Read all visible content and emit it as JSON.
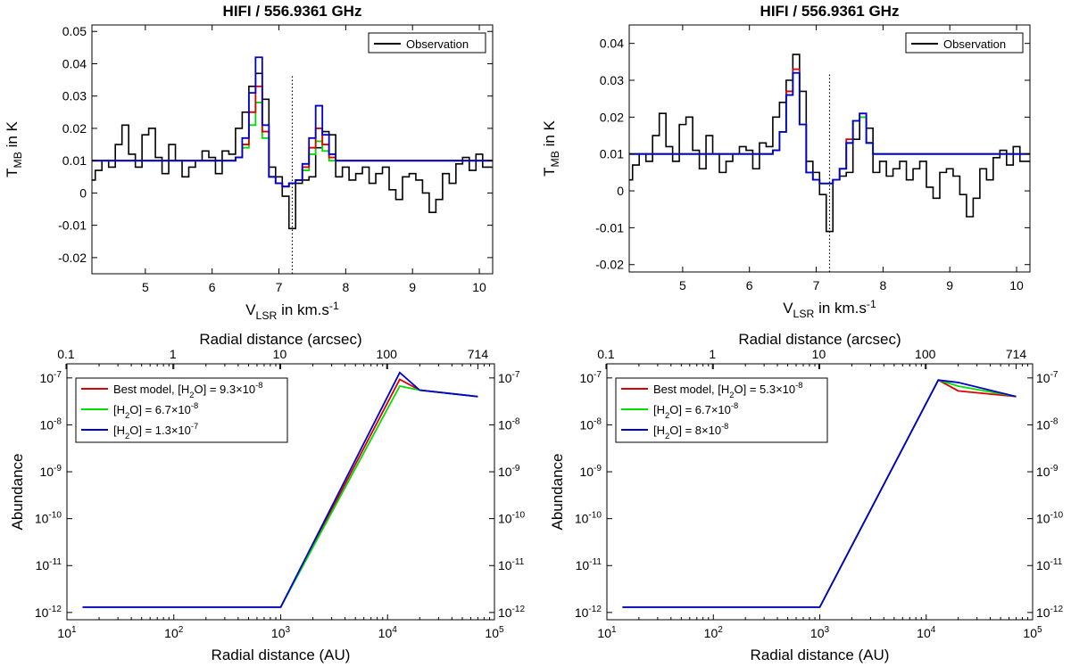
{
  "chart_data": [
    {
      "type": "line",
      "title": "HIFI / 556.9361 GHz",
      "xlabel": "V_LSR in km.s^-1",
      "ylabel": "T_MB in K",
      "xlim": [
        4.2,
        10.2
      ],
      "ylim": [
        -0.025,
        0.052
      ],
      "xticks": [
        "5",
        "6",
        "7",
        "8",
        "9",
        "10"
      ],
      "yticks": [
        "-0.02",
        "-0.01",
        "0",
        "0.01",
        "0.02",
        "0.03",
        "0.04",
        "0.05"
      ],
      "grid": false,
      "legend_position": "top-right",
      "vline_x": 7.2,
      "series": [
        {
          "name": "Observation",
          "color": "#000000",
          "step": true,
          "x": [
            4.2,
            4.3,
            4.4,
            4.5,
            4.6,
            4.7,
            4.8,
            4.9,
            5.0,
            5.1,
            5.2,
            5.3,
            5.4,
            5.5,
            5.6,
            5.7,
            5.8,
            5.9,
            6.0,
            6.1,
            6.2,
            6.3,
            6.4,
            6.5,
            6.6,
            6.7,
            6.8,
            6.9,
            7.0,
            7.1,
            7.2,
            7.3,
            7.4,
            7.5,
            7.6,
            7.7,
            7.8,
            7.9,
            8.0,
            8.1,
            8.2,
            8.3,
            8.4,
            8.5,
            8.6,
            8.7,
            8.8,
            8.9,
            9.0,
            9.1,
            9.2,
            9.3,
            9.4,
            9.5,
            9.6,
            9.7,
            9.8,
            9.9,
            10.0,
            10.1
          ],
          "y": [
            0.004,
            0.007,
            0.01,
            0.008,
            0.015,
            0.021,
            0.012,
            0.008,
            0.018,
            0.02,
            0.011,
            0.006,
            0.015,
            0.01,
            0.005,
            0.008,
            0.01,
            0.013,
            0.011,
            0.006,
            0.013,
            0.012,
            0.02,
            0.025,
            0.033,
            0.037,
            0.029,
            0.008,
            0.005,
            -0.001,
            -0.011,
            0.003,
            0.004,
            0.005,
            0.014,
            0.019,
            0.018,
            0.005,
            0.008,
            0.004,
            0.006,
            0.008,
            0.003,
            0.006,
            0.008,
            0.001,
            -0.002,
            0.005,
            0.006,
            0.004,
            0.0,
            -0.006,
            -0.002,
            0.006,
            0.003,
            0.009,
            0.011,
            0.007,
            0.012,
            0.008
          ]
        },
        {
          "name": "",
          "color": "#00dd00",
          "step": true,
          "x": [
            4.2,
            6.2,
            6.3,
            6.4,
            6.5,
            6.6,
            6.7,
            6.8,
            6.9,
            7.0,
            7.1,
            7.2,
            7.3,
            7.4,
            7.5,
            7.6,
            7.7,
            7.8,
            7.9,
            8.0,
            10.2
          ],
          "y": [
            0.01,
            0.01,
            0.01,
            0.011,
            0.014,
            0.021,
            0.028,
            0.017,
            0.005,
            0.003,
            0.002,
            0.003,
            0.004,
            0.007,
            0.012,
            0.016,
            0.013,
            0.01,
            0.01,
            0.01,
            0.01
          ]
        },
        {
          "name": "",
          "color": "#dd0000",
          "step": true,
          "x": [
            4.2,
            6.2,
            6.3,
            6.4,
            6.5,
            6.6,
            6.7,
            6.8,
            6.9,
            7.0,
            7.1,
            7.2,
            7.3,
            7.4,
            7.5,
            7.6,
            7.7,
            7.8,
            7.9,
            8.0,
            10.2
          ],
          "y": [
            0.01,
            0.01,
            0.01,
            0.011,
            0.015,
            0.025,
            0.033,
            0.019,
            0.005,
            0.003,
            0.002,
            0.003,
            0.004,
            0.008,
            0.014,
            0.02,
            0.015,
            0.011,
            0.01,
            0.01,
            0.01
          ]
        },
        {
          "name": "",
          "color": "#0000cc",
          "step": true,
          "x": [
            4.2,
            6.2,
            6.3,
            6.4,
            6.5,
            6.6,
            6.7,
            6.8,
            6.9,
            7.0,
            7.1,
            7.2,
            7.3,
            7.4,
            7.5,
            7.6,
            7.7,
            7.8,
            7.9,
            8.0,
            10.2
          ],
          "y": [
            0.01,
            0.01,
            0.01,
            0.011,
            0.017,
            0.031,
            0.042,
            0.021,
            0.005,
            0.003,
            0.002,
            0.003,
            0.004,
            0.009,
            0.017,
            0.027,
            0.018,
            0.012,
            0.01,
            0.01,
            0.01
          ]
        }
      ]
    },
    {
      "type": "line",
      "title": "HIFI / 556.9361 GHz",
      "xlabel": "V_LSR in km.s^-1",
      "ylabel": "T_MB in K",
      "xlim": [
        4.2,
        10.2
      ],
      "ylim": [
        -0.022,
        0.045
      ],
      "xticks": [
        "5",
        "6",
        "7",
        "8",
        "9",
        "10"
      ],
      "yticks": [
        "-0.02",
        "-0.01",
        "0",
        "0.01",
        "0.02",
        "0.03",
        "0.04"
      ],
      "grid": false,
      "legend_position": "top-right",
      "vline_x": 7.2,
      "series": [
        {
          "name": "Observation",
          "color": "#000000",
          "step": true,
          "x": [
            4.2,
            4.3,
            4.4,
            4.5,
            4.6,
            4.7,
            4.8,
            4.9,
            5.0,
            5.1,
            5.2,
            5.3,
            5.4,
            5.5,
            5.6,
            5.7,
            5.8,
            5.9,
            6.0,
            6.1,
            6.2,
            6.3,
            6.4,
            6.5,
            6.6,
            6.7,
            6.8,
            6.9,
            7.0,
            7.1,
            7.2,
            7.3,
            7.4,
            7.5,
            7.6,
            7.7,
            7.8,
            7.9,
            8.0,
            8.1,
            8.2,
            8.3,
            8.4,
            8.5,
            8.6,
            8.7,
            8.8,
            8.9,
            9.0,
            9.1,
            9.2,
            9.3,
            9.4,
            9.5,
            9.6,
            9.7,
            9.8,
            9.9,
            10.0,
            10.1
          ],
          "y": [
            0.003,
            0.007,
            0.01,
            0.008,
            0.015,
            0.021,
            0.012,
            0.008,
            0.018,
            0.02,
            0.011,
            0.006,
            0.015,
            0.01,
            0.005,
            0.008,
            0.01,
            0.012,
            0.011,
            0.006,
            0.013,
            0.012,
            0.02,
            0.024,
            0.03,
            0.037,
            0.027,
            0.008,
            0.005,
            -0.001,
            -0.011,
            0.003,
            0.004,
            0.005,
            0.014,
            0.02,
            0.017,
            0.005,
            0.008,
            0.004,
            0.006,
            0.008,
            0.003,
            0.006,
            0.008,
            0.001,
            -0.002,
            0.005,
            0.006,
            0.004,
            -0.001,
            -0.007,
            -0.002,
            0.006,
            0.003,
            0.009,
            0.011,
            0.007,
            0.012,
            0.008
          ]
        },
        {
          "name": "",
          "color": "#dd0000",
          "step": true,
          "x": [
            4.2,
            6.2,
            6.3,
            6.4,
            6.5,
            6.6,
            6.7,
            6.8,
            6.9,
            7.0,
            7.1,
            7.2,
            7.3,
            7.4,
            7.5,
            7.6,
            7.7,
            7.8,
            7.9,
            8.0,
            10.2
          ],
          "y": [
            0.01,
            0.01,
            0.01,
            0.011,
            0.016,
            0.027,
            0.033,
            0.018,
            0.005,
            0.003,
            0.002,
            0.002,
            0.003,
            0.006,
            0.014,
            0.019,
            0.021,
            0.013,
            0.01,
            0.01,
            0.01
          ]
        },
        {
          "name": "",
          "color": "#00dd00",
          "step": true,
          "x": [
            4.2,
            6.2,
            6.3,
            6.4,
            6.5,
            6.6,
            6.7,
            6.8,
            6.9,
            7.0,
            7.1,
            7.2,
            7.3,
            7.4,
            7.5,
            7.6,
            7.7,
            7.8,
            7.9,
            8.0,
            10.2
          ],
          "y": [
            0.01,
            0.01,
            0.01,
            0.011,
            0.016,
            0.026,
            0.032,
            0.018,
            0.005,
            0.003,
            0.002,
            0.002,
            0.003,
            0.006,
            0.013,
            0.019,
            0.02,
            0.013,
            0.01,
            0.01,
            0.01
          ]
        },
        {
          "name": "",
          "color": "#0000cc",
          "step": true,
          "x": [
            4.2,
            6.2,
            6.3,
            6.4,
            6.5,
            6.6,
            6.7,
            6.8,
            6.9,
            7.0,
            7.1,
            7.2,
            7.3,
            7.4,
            7.5,
            7.6,
            7.7,
            7.8,
            7.9,
            8.0,
            10.2
          ],
          "y": [
            0.01,
            0.01,
            0.01,
            0.011,
            0.016,
            0.026,
            0.032,
            0.018,
            0.005,
            0.003,
            0.002,
            0.002,
            0.003,
            0.006,
            0.013,
            0.019,
            0.021,
            0.013,
            0.01,
            0.01,
            0.01
          ]
        }
      ]
    },
    {
      "type": "line",
      "title": "",
      "xlabel": "Radial distance (AU)",
      "ylabel": "Abundance",
      "top_xlabel": "Radial distance (arcsec)",
      "xscale": "log",
      "yscale": "log",
      "xlim": [
        10,
        100000
      ],
      "ylim": [
        7e-13,
        2e-07
      ],
      "xticks": [
        "10^1",
        "10^2",
        "10^3",
        "10^4",
        "10^5"
      ],
      "yticks": [
        "10^-12",
        "10^-11",
        "10^-10",
        "10^-9",
        "10^-8",
        "10^-7"
      ],
      "top_xticks": [
        "0.1",
        "1",
        "10",
        "100",
        "714"
      ],
      "grid": false,
      "legend_position": "top-left",
      "series": [
        {
          "name": "Best model, [H2O] = 9.3×10^-8",
          "color": "#dd0000",
          "x": [
            14,
            1000,
            13000,
            20000,
            70000
          ],
          "y": [
            1.3e-12,
            1.3e-12,
            9.3e-08,
            5.5e-08,
            4e-08
          ]
        },
        {
          "name": "[H2O] = 6.7×10^-8",
          "color": "#00dd00",
          "x": [
            14,
            1000,
            13000,
            20000,
            70000
          ],
          "y": [
            1.3e-12,
            1.3e-12,
            6.7e-08,
            5.5e-08,
            4e-08
          ]
        },
        {
          "name": "[H2O] = 1.3×10^-7",
          "color": "#0000cc",
          "x": [
            14,
            1000,
            13000,
            20000,
            70000
          ],
          "y": [
            1.3e-12,
            1.3e-12,
            1.3e-07,
            5.5e-08,
            4e-08
          ]
        }
      ]
    },
    {
      "type": "line",
      "title": "",
      "xlabel": "Radial distance (AU)",
      "ylabel": "Abundance",
      "top_xlabel": "Radial distance (arcsec)",
      "xscale": "log",
      "yscale": "log",
      "xlim": [
        10,
        100000
      ],
      "ylim": [
        7e-13,
        2e-07
      ],
      "xticks": [
        "10^1",
        "10^2",
        "10^3",
        "10^4",
        "10^5"
      ],
      "yticks": [
        "10^-12",
        "10^-11",
        "10^-10",
        "10^-9",
        "10^-8",
        "10^-7"
      ],
      "top_xticks": [
        "0.1",
        "1",
        "10",
        "100",
        "714"
      ],
      "grid": false,
      "legend_position": "top-left",
      "series": [
        {
          "name": "Best model, [H2O] = 5.3×10^-8",
          "color": "#dd0000",
          "x": [
            14,
            1000,
            13000,
            20000,
            70000
          ],
          "y": [
            1.3e-12,
            1.3e-12,
            9e-08,
            5.3e-08,
            4e-08
          ]
        },
        {
          "name": "[H2O] = 6.7×10^-8",
          "color": "#00dd00",
          "x": [
            14,
            1000,
            13000,
            20000,
            70000
          ],
          "y": [
            1.3e-12,
            1.3e-12,
            9e-08,
            6.7e-08,
            4e-08
          ]
        },
        {
          "name": "[H2O] = 8×10^-8",
          "color": "#0000cc",
          "x": [
            14,
            1000,
            13000,
            20000,
            70000
          ],
          "y": [
            1.3e-12,
            1.3e-12,
            9e-08,
            8e-08,
            4e-08
          ]
        }
      ]
    }
  ]
}
